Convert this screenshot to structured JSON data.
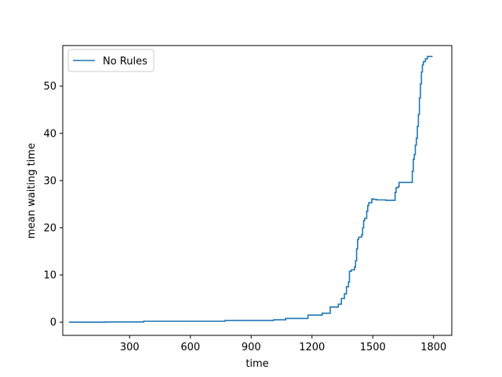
{
  "chart_data": {
    "type": "line",
    "title": "",
    "xlabel": "time",
    "ylabel": "mean waiting time",
    "xlim": [
      -30,
      1890
    ],
    "ylim": [
      -2.8,
      58.6
    ],
    "xticks": [
      300,
      600,
      900,
      1200,
      1500,
      1800
    ],
    "yticks": [
      0,
      10,
      20,
      30,
      40,
      50
    ],
    "xtick_labels": [
      "300",
      "600",
      "900",
      "1200",
      "1500",
      "1800"
    ],
    "ytick_labels": [
      "0",
      "10",
      "20",
      "30",
      "40",
      "50"
    ],
    "grid": false,
    "legend": {
      "position": "top-left",
      "entries": [
        "No Rules"
      ]
    },
    "series": [
      {
        "name": "No Rules",
        "color": "#1f77b4",
        "step": true,
        "points": [
          [
            0,
            0.0
          ],
          [
            180,
            0.05
          ],
          [
            370,
            0.2
          ],
          [
            770,
            0.35
          ],
          [
            1010,
            0.5
          ],
          [
            1070,
            0.8
          ],
          [
            1180,
            1.5
          ],
          [
            1250,
            1.9
          ],
          [
            1290,
            3.2
          ],
          [
            1330,
            3.8
          ],
          [
            1345,
            5.0
          ],
          [
            1360,
            6.0
          ],
          [
            1370,
            7.5
          ],
          [
            1380,
            8.5
          ],
          [
            1385,
            10.8
          ],
          [
            1395,
            11.1
          ],
          [
            1410,
            11.7
          ],
          [
            1415,
            13.0
          ],
          [
            1420,
            15.5
          ],
          [
            1425,
            17.5
          ],
          [
            1430,
            18.0
          ],
          [
            1445,
            18.5
          ],
          [
            1450,
            20.0
          ],
          [
            1455,
            21.5
          ],
          [
            1460,
            22.0
          ],
          [
            1470,
            23.5
          ],
          [
            1475,
            24.7
          ],
          [
            1480,
            25.3
          ],
          [
            1495,
            26.1
          ],
          [
            1505,
            26.0
          ],
          [
            1520,
            25.9
          ],
          [
            1565,
            25.8
          ],
          [
            1605,
            25.8
          ],
          [
            1610,
            27.5
          ],
          [
            1615,
            28.5
          ],
          [
            1625,
            28.7
          ],
          [
            1630,
            29.6
          ],
          [
            1690,
            29.6
          ],
          [
            1695,
            32.0
          ],
          [
            1700,
            34.5
          ],
          [
            1705,
            35.5
          ],
          [
            1710,
            37.5
          ],
          [
            1715,
            39.0
          ],
          [
            1720,
            41.5
          ],
          [
            1725,
            44.0
          ],
          [
            1730,
            47.5
          ],
          [
            1735,
            50.5
          ],
          [
            1740,
            53.0
          ],
          [
            1745,
            54.5
          ],
          [
            1750,
            55.2
          ],
          [
            1760,
            55.8
          ],
          [
            1770,
            56.3
          ],
          [
            1795,
            56.3
          ]
        ]
      }
    ]
  }
}
